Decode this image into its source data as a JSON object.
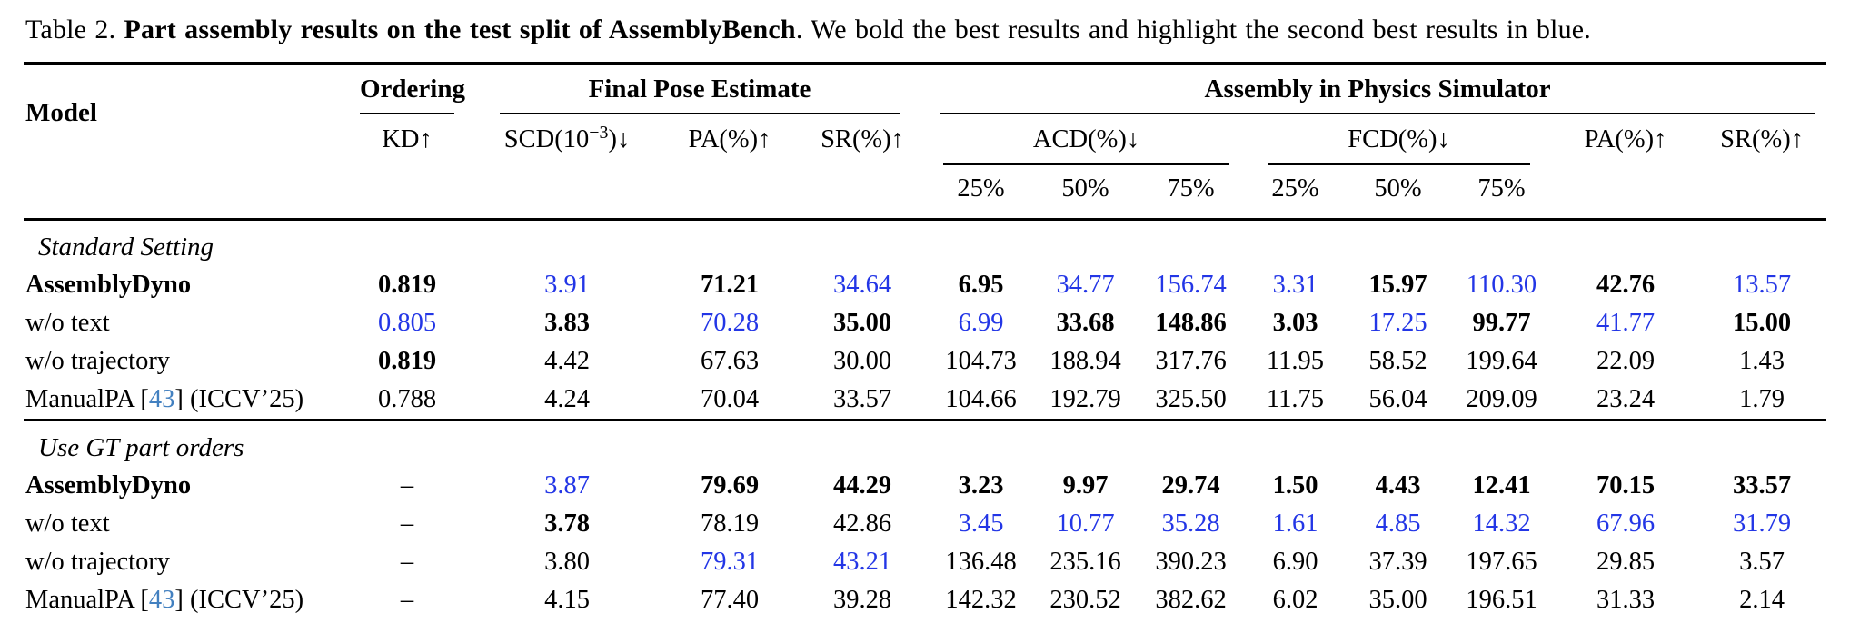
{
  "caption": {
    "tag": "Table 2.",
    "bold": " Part assembly results on the test split of AssemblyBench",
    "rest": ". We bold the best results and highlight the second best results in blue."
  },
  "colors": {
    "second_best": "#2336e6",
    "citation": "#4280c0",
    "text": "#000000",
    "background": "#ffffff"
  },
  "header": {
    "model": "Model",
    "groups": {
      "ordering": "Ordering",
      "final_pose": "Final Pose Estimate",
      "simulator": "Assembly in Physics Simulator"
    },
    "cols": {
      "kd": "KD↑",
      "scd_base": "SCD(10",
      "scd_sup": "−3",
      "scd_tail": ")↓",
      "pa_pose": "PA(%)↑",
      "sr_pose": "SR(%)↑",
      "acd": "ACD(%)↓",
      "fcd": "FCD(%)↓",
      "thresholds": [
        "25%",
        "50%",
        "75%"
      ],
      "pa_sim": "PA(%)↑",
      "sr_sim": "SR(%)↑"
    }
  },
  "legend": {
    "best_style": "bold",
    "second_best_style": "blue"
  },
  "table": {
    "sections": [
      {
        "title": "Standard Setting",
        "rows": [
          {
            "model": "AssemblyDyno",
            "bold": true,
            "cells": [
              {
                "v": "0.819",
                "s": "best"
              },
              {
                "v": "3.91",
                "s": "second"
              },
              {
                "v": "71.21",
                "s": "best"
              },
              {
                "v": "34.64",
                "s": "second"
              },
              {
                "v": "6.95",
                "s": "best"
              },
              {
                "v": "34.77",
                "s": "second"
              },
              {
                "v": "156.74",
                "s": "second"
              },
              {
                "v": "3.31",
                "s": "second"
              },
              {
                "v": "15.97",
                "s": "best"
              },
              {
                "v": "110.30",
                "s": "second"
              },
              {
                "v": "42.76",
                "s": "best"
              },
              {
                "v": "13.57",
                "s": "second"
              }
            ]
          },
          {
            "model": "w/o text",
            "bold": false,
            "cells": [
              {
                "v": "0.805",
                "s": "second"
              },
              {
                "v": "3.83",
                "s": "best"
              },
              {
                "v": "70.28",
                "s": "second"
              },
              {
                "v": "35.00",
                "s": "best"
              },
              {
                "v": "6.99",
                "s": "second"
              },
              {
                "v": "33.68",
                "s": "best"
              },
              {
                "v": "148.86",
                "s": "best"
              },
              {
                "v": "3.03",
                "s": "best"
              },
              {
                "v": "17.25",
                "s": "second"
              },
              {
                "v": "99.77",
                "s": "best"
              },
              {
                "v": "41.77",
                "s": "second"
              },
              {
                "v": "15.00",
                "s": "best"
              }
            ]
          },
          {
            "model": "w/o trajectory",
            "bold": false,
            "cells": [
              {
                "v": "0.819",
                "s": "best"
              },
              {
                "v": "4.42"
              },
              {
                "v": "67.63"
              },
              {
                "v": "30.00"
              },
              {
                "v": "104.73"
              },
              {
                "v": "188.94"
              },
              {
                "v": "317.76"
              },
              {
                "v": "11.95"
              },
              {
                "v": "58.52"
              },
              {
                "v": "199.64"
              },
              {
                "v": "22.09"
              },
              {
                "v": "1.43"
              }
            ]
          },
          {
            "model": {
              "before": "ManualPA [",
              "cite": "43",
              "after": "] (ICCV’25)"
            },
            "bold": false,
            "cells": [
              {
                "v": "0.788"
              },
              {
                "v": "4.24"
              },
              {
                "v": "70.04"
              },
              {
                "v": "33.57"
              },
              {
                "v": "104.66"
              },
              {
                "v": "192.79"
              },
              {
                "v": "325.50"
              },
              {
                "v": "11.75"
              },
              {
                "v": "56.04"
              },
              {
                "v": "209.09"
              },
              {
                "v": "23.24"
              },
              {
                "v": "1.79"
              }
            ]
          }
        ]
      },
      {
        "title": "Use GT part orders",
        "rows": [
          {
            "model": "AssemblyDyno",
            "bold": true,
            "cells": [
              {
                "v": "–"
              },
              {
                "v": "3.87",
                "s": "second"
              },
              {
                "v": "79.69",
                "s": "best"
              },
              {
                "v": "44.29",
                "s": "best"
              },
              {
                "v": "3.23",
                "s": "best"
              },
              {
                "v": "9.97",
                "s": "best"
              },
              {
                "v": "29.74",
                "s": "best"
              },
              {
                "v": "1.50",
                "s": "best"
              },
              {
                "v": "4.43",
                "s": "best"
              },
              {
                "v": "12.41",
                "s": "best"
              },
              {
                "v": "70.15",
                "s": "best"
              },
              {
                "v": "33.57",
                "s": "best"
              }
            ]
          },
          {
            "model": "w/o text",
            "bold": false,
            "cells": [
              {
                "v": "–"
              },
              {
                "v": "3.78",
                "s": "best"
              },
              {
                "v": "78.19"
              },
              {
                "v": "42.86"
              },
              {
                "v": "3.45",
                "s": "second"
              },
              {
                "v": "10.77",
                "s": "second"
              },
              {
                "v": "35.28",
                "s": "second"
              },
              {
                "v": "1.61",
                "s": "second"
              },
              {
                "v": "4.85",
                "s": "second"
              },
              {
                "v": "14.32",
                "s": "second"
              },
              {
                "v": "67.96",
                "s": "second"
              },
              {
                "v": "31.79",
                "s": "second"
              }
            ]
          },
          {
            "model": "w/o trajectory",
            "bold": false,
            "cells": [
              {
                "v": "–"
              },
              {
                "v": "3.80"
              },
              {
                "v": "79.31",
                "s": "second"
              },
              {
                "v": "43.21",
                "s": "second"
              },
              {
                "v": "136.48"
              },
              {
                "v": "235.16"
              },
              {
                "v": "390.23"
              },
              {
                "v": "6.90"
              },
              {
                "v": "37.39"
              },
              {
                "v": "197.65"
              },
              {
                "v": "29.85"
              },
              {
                "v": "3.57"
              }
            ]
          },
          {
            "model": {
              "before": "ManualPA [",
              "cite": "43",
              "after": "] (ICCV’25)"
            },
            "bold": false,
            "cells": [
              {
                "v": "–"
              },
              {
                "v": "4.15"
              },
              {
                "v": "77.40"
              },
              {
                "v": "39.28"
              },
              {
                "v": "142.32"
              },
              {
                "v": "230.52"
              },
              {
                "v": "382.62"
              },
              {
                "v": "6.02"
              },
              {
                "v": "35.00"
              },
              {
                "v": "196.51"
              },
              {
                "v": "31.33"
              },
              {
                "v": "2.14"
              }
            ]
          }
        ]
      }
    ]
  }
}
